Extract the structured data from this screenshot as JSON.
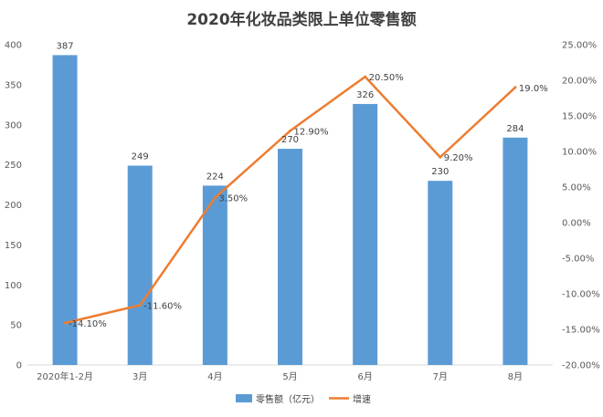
{
  "chart_data": {
    "type": "bar",
    "title": "2020年化妆品类限上单位零售额",
    "categories": [
      "2020年1-2月",
      "3月",
      "4月",
      "5月",
      "6月",
      "7月",
      "8月"
    ],
    "series": [
      {
        "name": "零售额（亿元）",
        "type": "bar",
        "axis": "left",
        "color": "#5B9BD5",
        "values": [
          387,
          249,
          224,
          270,
          326,
          230,
          284
        ],
        "labels": [
          "387",
          "249",
          "224",
          "270",
          "326",
          "230",
          "284"
        ]
      },
      {
        "name": "增速",
        "type": "line",
        "axis": "right",
        "color": "#ED7D31",
        "values": [
          -14.1,
          -11.6,
          3.5,
          12.9,
          20.5,
          9.2,
          19.0
        ],
        "labels": [
          "-14.10%",
          "-11.60%",
          "3.50%",
          "12.90%",
          "20.50%",
          "9.20%",
          "19.0%"
        ]
      }
    ],
    "y_left": {
      "min": 0,
      "max": 400,
      "ticks": [
        "0",
        "50",
        "100",
        "150",
        "200",
        "250",
        "300",
        "350",
        "400"
      ]
    },
    "y_right": {
      "min": -20,
      "max": 25,
      "ticks": [
        "-20.00%",
        "-15.00%",
        "-10.00%",
        "-5.00%",
        "0.00%",
        "5.00%",
        "10.00%",
        "15.00%",
        "20.00%",
        "25.00%"
      ]
    },
    "grid": false,
    "legend_position": "bottom"
  }
}
